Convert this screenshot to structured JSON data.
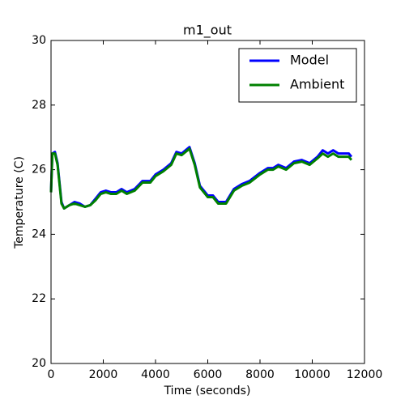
{
  "chart_data": {
    "type": "line",
    "title": "m1_out",
    "xlabel": "Time (seconds)",
    "ylabel": "Temperature (C)",
    "x": [
      0,
      50,
      150,
      250,
      400,
      500,
      700,
      900,
      1100,
      1300,
      1500,
      1700,
      1900,
      2100,
      2300,
      2500,
      2700,
      2900,
      3200,
      3500,
      3800,
      4000,
      4300,
      4600,
      4800,
      5000,
      5300,
      5500,
      5700,
      6000,
      6200,
      6400,
      6700,
      7000,
      7300,
      7600,
      8000,
      8300,
      8500,
      8700,
      9000,
      9300,
      9600,
      9900,
      10200,
      10400,
      10600,
      10800,
      11000,
      11400,
      11500
    ],
    "series": [
      {
        "name": "Model",
        "color": "#0000ff",
        "values": [
          25.3,
          26.5,
          26.55,
          26.2,
          25.0,
          24.8,
          24.9,
          25.0,
          24.95,
          24.85,
          24.9,
          25.1,
          25.3,
          25.35,
          25.3,
          25.3,
          25.4,
          25.3,
          25.4,
          25.65,
          25.65,
          25.85,
          26.0,
          26.2,
          26.55,
          26.5,
          26.7,
          26.2,
          25.5,
          25.2,
          25.2,
          25.0,
          25.0,
          25.4,
          25.55,
          25.65,
          25.9,
          26.05,
          26.05,
          26.15,
          26.05,
          26.25,
          26.3,
          26.2,
          26.4,
          26.6,
          26.5,
          26.6,
          26.5,
          26.5,
          26.4
        ]
      },
      {
        "name": "Ambient",
        "color": "#008000",
        "values": [
          25.3,
          26.5,
          26.5,
          26.15,
          24.95,
          24.8,
          24.9,
          24.95,
          24.9,
          24.85,
          24.9,
          25.05,
          25.25,
          25.3,
          25.25,
          25.25,
          25.35,
          25.25,
          25.35,
          25.6,
          25.6,
          25.8,
          25.95,
          26.15,
          26.5,
          26.45,
          26.65,
          26.15,
          25.45,
          25.15,
          25.15,
          24.95,
          24.95,
          25.35,
          25.5,
          25.6,
          25.85,
          26.0,
          26.0,
          26.1,
          26.0,
          26.2,
          26.25,
          26.15,
          26.35,
          26.5,
          26.4,
          26.5,
          26.4,
          26.4,
          26.3
        ]
      }
    ],
    "xlim": [
      0,
      12000
    ],
    "xticks": [
      0,
      2000,
      4000,
      6000,
      8000,
      10000,
      12000
    ],
    "ylim": [
      20,
      30
    ],
    "yticks": [
      20,
      22,
      24,
      26,
      28,
      30
    ],
    "grid": false,
    "legend": "upper right"
  }
}
